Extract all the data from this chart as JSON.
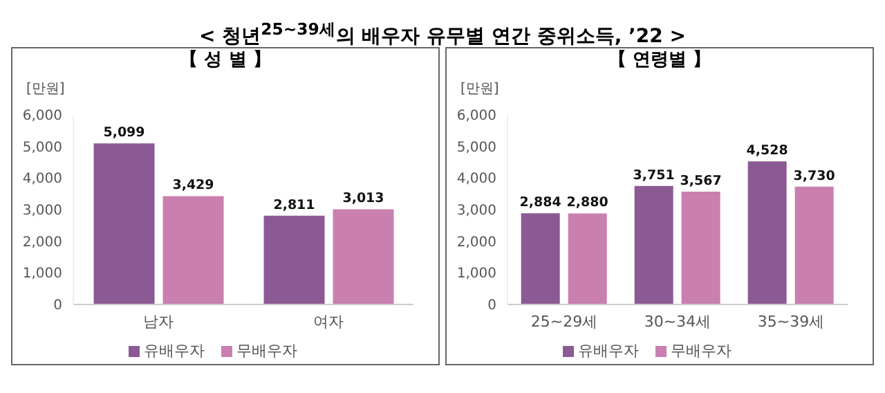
{
  "chart_data": [
    {
      "type": "bar",
      "title": "< 청년$^{25~39세}$의 배우자 유무별 연간 중위소득, ’22 >",
      "subtitle": "【 성 별 】",
      "ylabel": "[만원]",
      "categories": [
        "남자",
        "여자"
      ],
      "series": [
        {
          "name": "유배우자",
          "color": "#8b5a94",
          "values": [
            5099,
            2811
          ],
          "value_labels": [
            "5,099",
            "2,811"
          ]
        },
        {
          "name": "무배우자",
          "color": "#c97fb0",
          "values": [
            3429,
            3013
          ],
          "value_labels": [
            "3,429",
            "3,013"
          ]
        }
      ],
      "ylim": [
        0,
        6000
      ],
      "yticks": [
        {
          "value": 0,
          "label": "0"
        },
        {
          "value": 1000,
          "label": "1,000"
        },
        {
          "value": 2000,
          "label": "2,000"
        },
        {
          "value": 3000,
          "label": "3,000"
        },
        {
          "value": 4000,
          "label": "4,000"
        },
        {
          "value": 5000,
          "label": "5,000"
        },
        {
          "value": 6000,
          "label": "6,000"
        }
      ],
      "grid": false,
      "legend": "bottom"
    },
    {
      "type": "bar",
      "subtitle": "【 연령별 】",
      "ylabel": "[만원]",
      "categories": [
        "25~29세",
        "30~34세",
        "35~39세"
      ],
      "series": [
        {
          "name": "유배우자",
          "color": "#8b5a94",
          "values": [
            2884,
            3751,
            4528
          ],
          "value_labels": [
            "2,884",
            "3,751",
            "4,528"
          ]
        },
        {
          "name": "무배우자",
          "color": "#c97fb0",
          "values": [
            2880,
            3567,
            3730
          ],
          "value_labels": [
            "2,880",
            "3,567",
            "3,730"
          ]
        }
      ],
      "ylim": [
        0,
        6000
      ],
      "yticks": [
        {
          "value": 0,
          "label": "0"
        },
        {
          "value": 1000,
          "label": "1,000"
        },
        {
          "value": 2000,
          "label": "2,000"
        },
        {
          "value": 3000,
          "label": "3,000"
        },
        {
          "value": 4000,
          "label": "4,000"
        },
        {
          "value": 5000,
          "label": "5,000"
        },
        {
          "value": 6000,
          "label": "6,000"
        }
      ],
      "grid": false,
      "legend": "bottom"
    }
  ]
}
